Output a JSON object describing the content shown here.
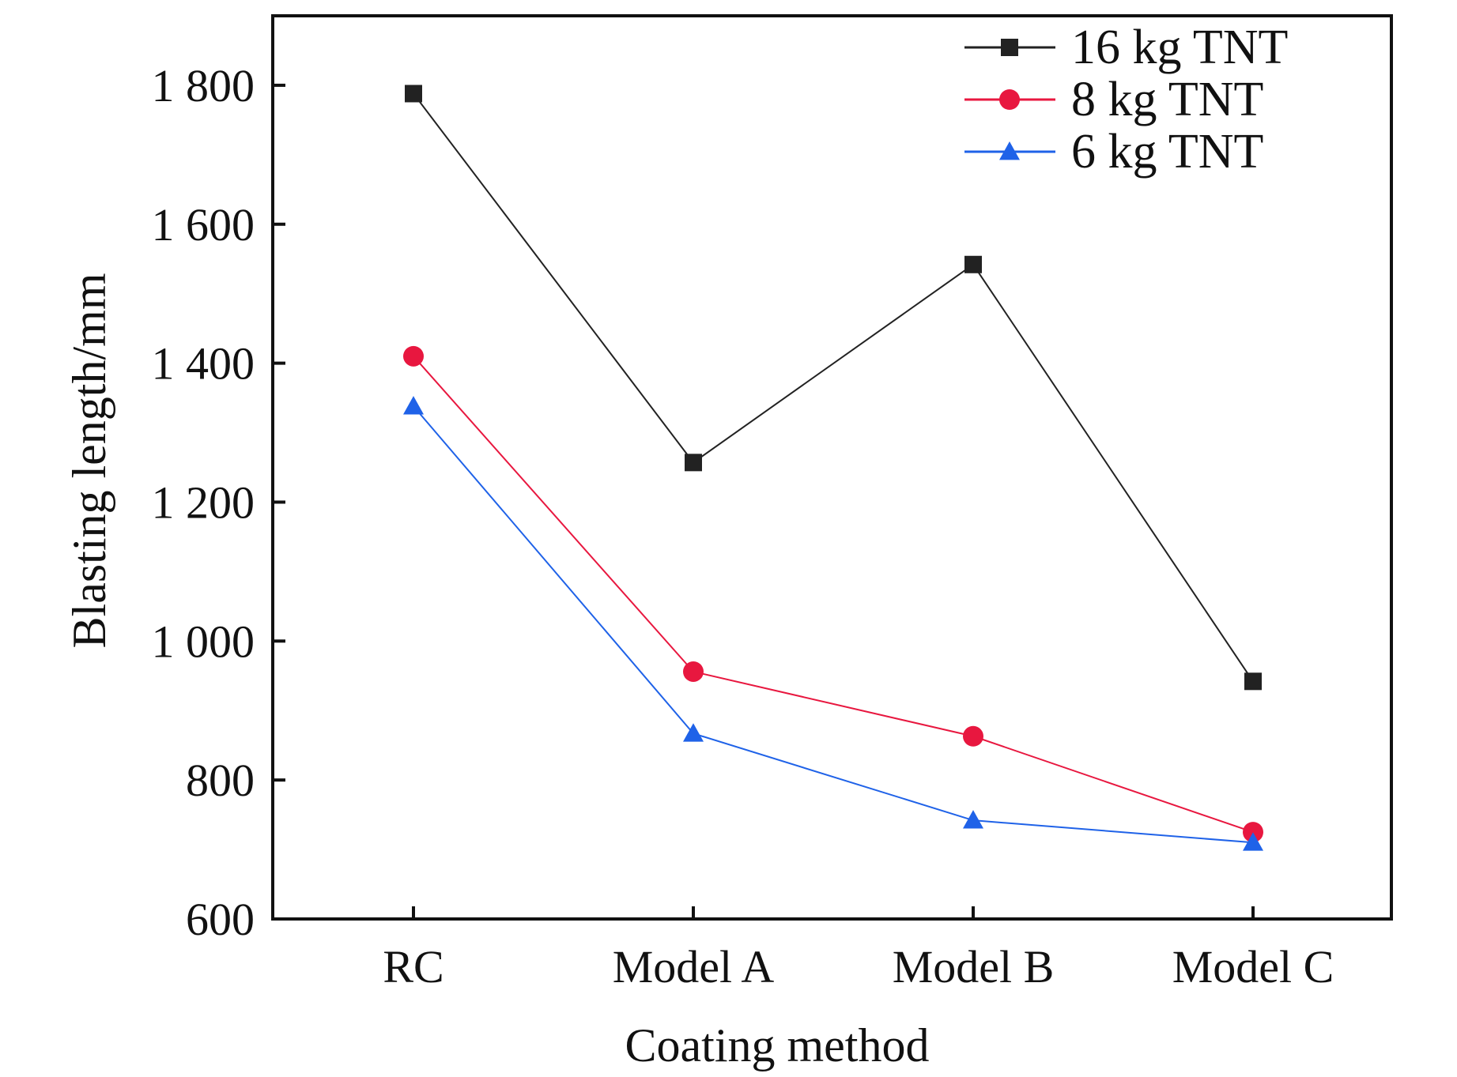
{
  "chart_data": {
    "type": "line",
    "categories": [
      "RC",
      "Model A",
      "Model B",
      "Model C"
    ],
    "y_tick_labels": [
      "600",
      "800",
      "1 000",
      "1 200",
      "1 400",
      "1 600",
      "1 800"
    ],
    "y_ticks": [
      600,
      800,
      1000,
      1200,
      1400,
      1600,
      1800
    ],
    "ylim": [
      600,
      1900
    ],
    "xlabel": "Coating method",
    "ylabel": "Blasting length/mm",
    "grid": false,
    "legend_position": "top-right",
    "series": [
      {
        "name": "16 kg TNT",
        "values": [
          1788,
          1257,
          1542,
          942
        ],
        "color": "#222222",
        "marker": "square"
      },
      {
        "name": "8 kg TNT",
        "values": [
          1410,
          956,
          863,
          725
        ],
        "color": "#e8173f",
        "marker": "circle"
      },
      {
        "name": "6 kg TNT",
        "values": [
          1338,
          867,
          742,
          710
        ],
        "color": "#1f62e8",
        "marker": "triangle"
      }
    ]
  }
}
